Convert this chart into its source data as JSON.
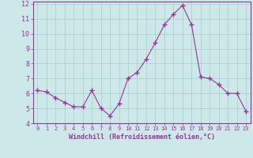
{
  "x": [
    0,
    1,
    2,
    3,
    4,
    5,
    6,
    7,
    8,
    9,
    10,
    11,
    12,
    13,
    14,
    15,
    16,
    17,
    18,
    19,
    20,
    21,
    22,
    23
  ],
  "y": [
    6.2,
    6.1,
    5.7,
    5.4,
    5.1,
    5.1,
    6.2,
    5.0,
    4.5,
    5.3,
    7.0,
    7.4,
    8.3,
    9.4,
    10.6,
    11.3,
    11.9,
    10.6,
    7.1,
    7.0,
    6.6,
    6.0,
    6.0,
    4.8
  ],
  "line_color": "#993399",
  "marker": "+",
  "marker_size": 4,
  "bg_color": "#cce8e8",
  "grid_color": "#aacccc",
  "xlabel": "Windchill (Refroidissement éolien,°C)",
  "xlabel_color": "#993399",
  "tick_color": "#993399",
  "spine_color": "#993399",
  "ylim": [
    4,
    12
  ],
  "xlim": [
    -0.5,
    23.5
  ],
  "yticks": [
    4,
    5,
    6,
    7,
    8,
    9,
    10,
    11,
    12
  ],
  "xticks": [
    0,
    1,
    2,
    3,
    4,
    5,
    6,
    7,
    8,
    9,
    10,
    11,
    12,
    13,
    14,
    15,
    16,
    17,
    18,
    19,
    20,
    21,
    22,
    23
  ],
  "xlabel_fontsize": 6.0,
  "tick_fontsize_x": 5.0,
  "tick_fontsize_y": 6.0
}
